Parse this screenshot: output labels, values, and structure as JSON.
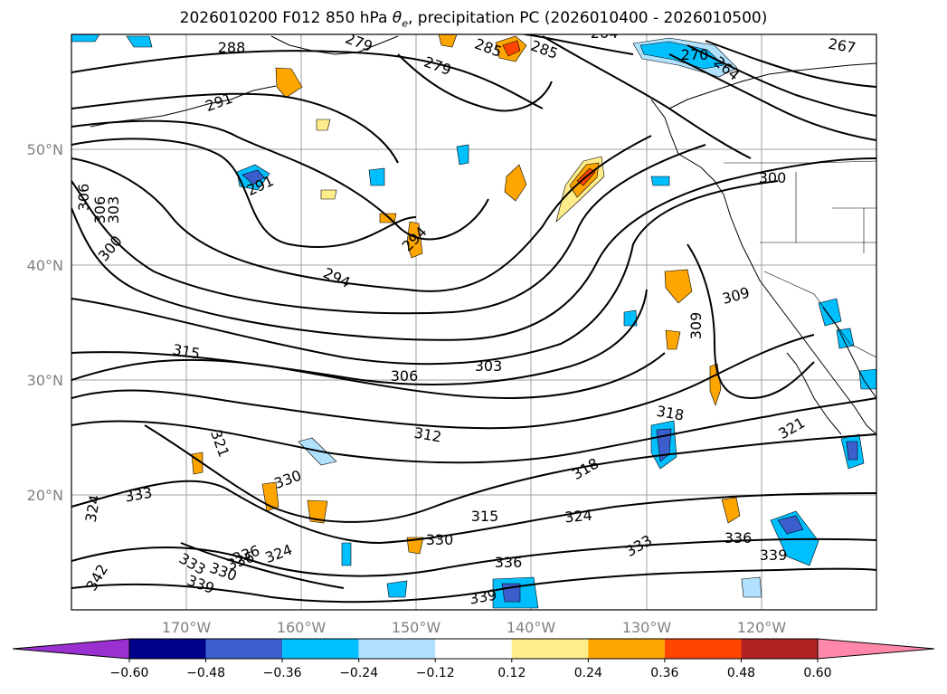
{
  "title_parts": {
    "prefix": "2026010200 F012 850 hPa ",
    "symbol": "θ",
    "subscript": "e",
    "suffix": ", precipitation PC (2026010400 - 2026010500)"
  },
  "map": {
    "lon_ticks": [
      "170°W",
      "160°W",
      "150°W",
      "140°W",
      "130°W",
      "120°W"
    ],
    "lat_ticks": [
      "50°N",
      "40°N",
      "30°N",
      "20°N"
    ],
    "gridlines": true,
    "contour_labels": [
      "288",
      "279",
      "285",
      "285",
      "264",
      "267",
      "279",
      "270",
      "264",
      "291",
      "291",
      "306",
      "303",
      "306",
      "300",
      "294",
      "294",
      "300",
      "309",
      "309",
      "315",
      "306",
      "303",
      "312",
      "318",
      "321",
      "318",
      "321",
      "324",
      "330",
      "333",
      "324",
      "315",
      "330",
      "324",
      "333",
      "336",
      "336",
      "339",
      "339",
      "333",
      "330",
      "336",
      "339",
      "342",
      "336"
    ]
  },
  "colorbar": {
    "ticks": [
      "−0.60",
      "−0.48",
      "−0.36",
      "−0.24",
      "−0.12",
      "0.12",
      "0.24",
      "0.36",
      "0.48",
      "0.60"
    ],
    "colors": [
      "#9b30d0",
      "#00008b",
      "#3a5fcd",
      "#00bfff",
      "#b0e2ff",
      "#ffffff",
      "#ffec8b",
      "#ffa500",
      "#ff4500",
      "#b22222",
      "#ff88aa"
    ]
  }
}
